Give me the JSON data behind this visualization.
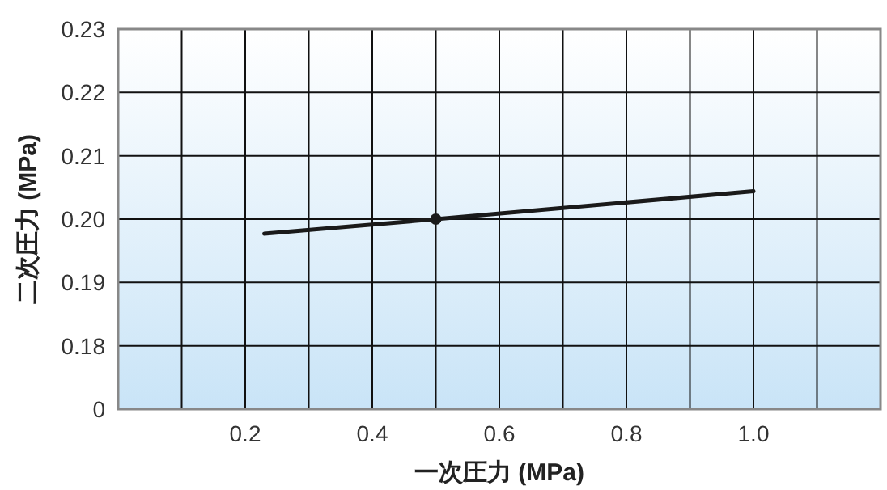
{
  "chart_data": {
    "type": "line",
    "xlabel": "一次圧力 (MPa)",
    "ylabel": "二次圧力 (MPa)",
    "xlim": [
      0,
      1.2
    ],
    "ylim": [
      0.17,
      0.23
    ],
    "xticks": [
      {
        "value": 0.1,
        "label": null
      },
      0.2,
      {
        "value": 0.3,
        "label": null
      },
      0.4,
      {
        "value": 0.5,
        "label": null
      },
      0.6,
      {
        "value": 0.7,
        "label": null
      },
      0.8,
      {
        "value": 0.9,
        "label": null
      },
      {
        "value": 1.0,
        "label": "1.0"
      },
      {
        "value": 1.1,
        "label": null
      }
    ],
    "yticks": [
      {
        "value": 0.17,
        "label": "0"
      },
      0.18,
      0.19,
      {
        "value": 0.2,
        "label": "0.20"
      },
      0.21,
      0.22,
      0.23
    ],
    "grid": true,
    "series": [
      {
        "type": "line",
        "color": "#1a1a1a",
        "x": [
          0.23,
          0.5,
          1.0
        ],
        "values": [
          0.1977,
          0.2,
          0.2044
        ],
        "marker": "none"
      },
      {
        "type": "scatter",
        "color": "#1a1a1a",
        "x": [
          0.5
        ],
        "values": [
          0.2
        ],
        "marker": "circle"
      }
    ]
  }
}
